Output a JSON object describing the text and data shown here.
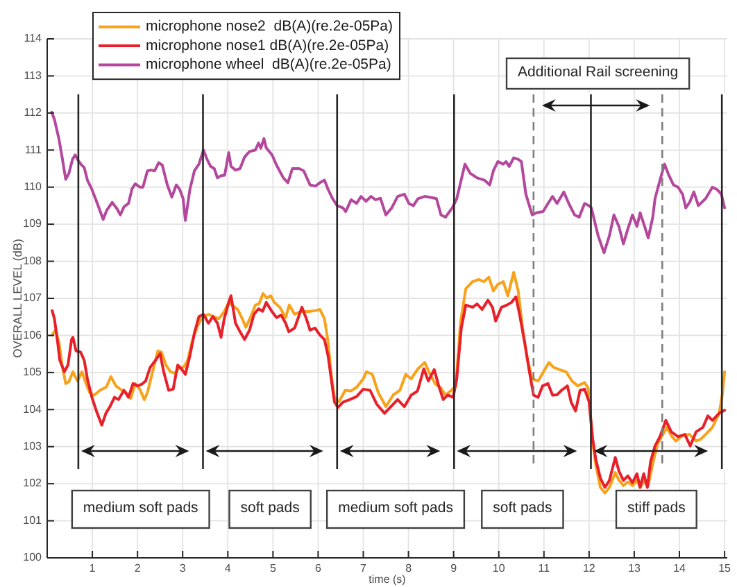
{
  "chart_data": {
    "type": "line",
    "xlabel": "time (s)",
    "ylabel": "OVERALL LEVEL (dB)",
    "xlim": [
      0,
      15.06
    ],
    "ylim": [
      100,
      114
    ],
    "xticks": [
      1,
      2,
      3,
      4,
      5,
      6,
      7,
      8,
      9,
      10,
      11,
      12,
      13,
      14,
      15
    ],
    "yticks": [
      100,
      101,
      102,
      103,
      104,
      105,
      106,
      107,
      108,
      109,
      110,
      111,
      112,
      113,
      114
    ],
    "grid": true,
    "legend": "top left",
    "series": [
      {
        "name": "microphone nose2  dB(A)(re.2e-05Pa)",
        "color": "#f7a21b",
        "x": [
          0.11,
          0.18,
          0.26,
          0.33,
          0.41,
          0.48,
          0.57,
          0.67,
          0.77,
          0.84,
          0.94,
          1.04,
          1.17,
          1.31,
          1.41,
          1.52,
          1.62,
          1.75,
          1.85,
          1.95,
          2.05,
          2.15,
          2.22,
          2.32,
          2.45,
          2.53,
          2.63,
          2.73,
          2.83,
          2.93,
          3.02,
          3.11,
          3.21,
          3.33,
          3.43,
          3.57,
          3.7,
          3.8,
          3.92,
          4.02,
          4.12,
          4.22,
          4.32,
          4.4,
          4.51,
          4.61,
          4.69,
          4.78,
          4.86,
          4.95,
          5.03,
          5.15,
          5.28,
          5.36,
          5.48,
          5.62,
          5.76,
          5.94,
          6.04,
          6.14,
          6.22,
          6.29,
          6.36,
          6.46,
          6.6,
          6.72,
          6.85,
          7.0,
          7.07,
          7.2,
          7.33,
          7.5,
          7.66,
          7.81,
          7.94,
          8.06,
          8.21,
          8.36,
          8.46,
          8.59,
          8.72,
          8.82,
          8.95,
          9.05,
          9.15,
          9.27,
          9.42,
          9.56,
          9.67,
          9.78,
          9.88,
          9.98,
          10.1,
          10.2,
          10.33,
          10.43,
          10.54,
          10.64,
          10.74,
          10.87,
          10.99,
          11.11,
          11.21,
          11.34,
          11.49,
          11.62,
          11.75,
          11.9,
          11.98,
          12.08,
          12.15,
          12.25,
          12.35,
          12.45,
          12.58,
          12.66,
          12.76,
          12.86,
          12.96,
          13.06,
          13.13,
          13.21,
          13.31,
          13.42,
          13.52,
          13.62,
          13.72,
          13.82,
          13.92,
          14.07,
          14.22,
          14.37,
          14.47,
          14.58,
          14.73,
          14.88,
          14.95,
          15.0
        ],
        "values": [
          106.01,
          106.14,
          105.83,
          105.2,
          104.7,
          104.75,
          105.02,
          104.77,
          105.02,
          104.77,
          104.46,
          104.39,
          104.52,
          104.61,
          104.89,
          104.64,
          104.55,
          104.46,
          104.3,
          104.7,
          104.55,
          104.27,
          104.46,
          104.95,
          105.58,
          105.55,
          105.2,
          105.02,
          104.98,
          105.14,
          105.14,
          105.33,
          105.83,
          106.26,
          106.48,
          106.57,
          106.5,
          106.45,
          106.64,
          106.89,
          106.8,
          106.7,
          106.45,
          106.22,
          106.51,
          106.82,
          106.85,
          107.13,
          107.01,
          107.07,
          106.89,
          106.76,
          106.48,
          106.82,
          106.57,
          106.65,
          106.64,
          106.67,
          106.7,
          106.45,
          105.83,
          104.95,
          104.33,
          104.21,
          104.52,
          104.5,
          104.6,
          104.83,
          105.02,
          104.95,
          104.46,
          104.08,
          104.39,
          104.52,
          104.95,
          104.83,
          105.1,
          105.27,
          105.0,
          104.7,
          104.58,
          104.39,
          104.52,
          104.64,
          106.33,
          107.26,
          107.45,
          107.51,
          107.45,
          107.57,
          107.2,
          107.38,
          107.45,
          107.07,
          107.7,
          107.2,
          106.07,
          105.33,
          104.83,
          104.77,
          105.02,
          105.27,
          105.14,
          105.08,
          105.02,
          104.77,
          104.64,
          104.73,
          104.58,
          103.1,
          102.5,
          101.9,
          101.75,
          101.9,
          102.3,
          102.1,
          101.95,
          102.05,
          101.95,
          102.1,
          101.9,
          102.05,
          101.96,
          102.6,
          103.08,
          103.3,
          103.52,
          103.3,
          103.15,
          103.3,
          103.33,
          103.15,
          103.2,
          103.33,
          103.52,
          103.9,
          104.4,
          105.02
        ]
      },
      {
        "name": "microphone nose1 dB(A)(re.2e-05Pa)",
        "color": "#e8202a",
        "x": [
          0.11,
          0.16,
          0.23,
          0.28,
          0.38,
          0.46,
          0.54,
          0.57,
          0.64,
          0.74,
          0.82,
          0.89,
          0.99,
          1.09,
          1.21,
          1.3,
          1.39,
          1.49,
          1.58,
          1.7,
          1.8,
          1.9,
          2.0,
          2.09,
          2.18,
          2.28,
          2.4,
          2.5,
          2.58,
          2.69,
          2.79,
          2.89,
          2.97,
          3.06,
          3.16,
          3.26,
          3.36,
          3.46,
          3.57,
          3.67,
          3.77,
          3.85,
          3.92,
          4.02,
          4.07,
          4.17,
          4.27,
          4.37,
          4.48,
          4.58,
          4.68,
          4.77,
          4.85,
          4.98,
          5.08,
          5.18,
          5.28,
          5.35,
          5.48,
          5.64,
          5.74,
          5.82,
          5.93,
          6.04,
          6.14,
          6.22,
          6.29,
          6.36,
          6.44,
          6.55,
          6.7,
          6.85,
          7.0,
          7.15,
          7.3,
          7.47,
          7.61,
          7.76,
          7.91,
          8.06,
          8.2,
          8.34,
          8.44,
          8.57,
          8.67,
          8.77,
          8.87,
          8.99,
          9.07,
          9.17,
          9.27,
          9.42,
          9.52,
          9.63,
          9.76,
          9.86,
          9.93,
          10.06,
          10.18,
          10.28,
          10.38,
          10.46,
          10.57,
          10.67,
          10.77,
          10.87,
          10.97,
          11.09,
          11.19,
          11.29,
          11.39,
          11.52,
          11.6,
          11.7,
          11.8,
          11.9,
          12.0,
          12.08,
          12.15,
          12.25,
          12.35,
          12.45,
          12.58,
          12.66,
          12.76,
          12.86,
          12.96,
          13.06,
          13.13,
          13.21,
          13.29,
          13.36,
          13.46,
          13.57,
          13.7,
          13.82,
          13.97,
          14.12,
          14.24,
          14.37,
          14.52,
          14.63,
          14.73,
          14.88,
          15.0
        ],
        "values": [
          106.67,
          106.45,
          105.83,
          105.33,
          105.02,
          105.2,
          105.89,
          105.95,
          105.58,
          105.55,
          105.33,
          104.83,
          104.33,
          103.96,
          103.58,
          103.9,
          104.08,
          104.33,
          104.27,
          104.52,
          104.33,
          104.7,
          104.64,
          104.68,
          104.77,
          105.14,
          105.33,
          105.51,
          105.02,
          104.52,
          104.55,
          105.2,
          105.1,
          104.95,
          105.45,
          106.07,
          106.51,
          106.57,
          106.33,
          106.51,
          106.33,
          105.95,
          106.45,
          106.89,
          107.07,
          106.33,
          106.1,
          105.89,
          106.14,
          106.57,
          106.72,
          106.65,
          106.89,
          106.64,
          106.48,
          106.55,
          106.33,
          106.1,
          106.2,
          106.76,
          106.45,
          106.14,
          106.2,
          106.01,
          105.89,
          105.45,
          104.83,
          104.21,
          104.06,
          104.2,
          104.27,
          104.35,
          104.55,
          104.52,
          104.14,
          103.9,
          104.08,
          104.27,
          104.08,
          104.39,
          104.5,
          105.1,
          104.77,
          105.08,
          104.64,
          104.27,
          104.39,
          104.33,
          104.83,
          106.2,
          106.82,
          106.76,
          106.85,
          106.7,
          106.95,
          106.76,
          106.39,
          106.76,
          106.82,
          106.89,
          107.04,
          106.57,
          105.83,
          105.08,
          104.39,
          104.33,
          104.64,
          104.7,
          104.39,
          104.4,
          104.52,
          104.64,
          104.21,
          103.96,
          104.52,
          104.55,
          104.21,
          103.21,
          102.65,
          102.15,
          101.9,
          102.09,
          102.71,
          102.34,
          102.09,
          102.21,
          102.03,
          102.27,
          101.9,
          102.27,
          101.9,
          102.59,
          103.02,
          103.27,
          103.71,
          103.4,
          103.27,
          103.33,
          103.02,
          103.4,
          103.52,
          103.83,
          103.71,
          103.9,
          103.98
        ]
      },
      {
        "name": "microphone wheel  dB(A)(re.2e-05Pa)",
        "color": "#b4489d",
        "x": [
          0.1,
          0.16,
          0.26,
          0.33,
          0.41,
          0.48,
          0.56,
          0.62,
          0.69,
          0.76,
          0.82,
          0.89,
          0.99,
          1.11,
          1.24,
          1.32,
          1.44,
          1.55,
          1.62,
          1.7,
          1.8,
          1.88,
          1.95,
          2.05,
          2.12,
          2.22,
          2.3,
          2.38,
          2.47,
          2.55,
          2.66,
          2.76,
          2.86,
          2.93,
          3.01,
          3.06,
          3.16,
          3.26,
          3.36,
          3.46,
          3.54,
          3.62,
          3.7,
          3.77,
          3.85,
          3.93,
          4.02,
          4.07,
          4.17,
          4.27,
          4.37,
          4.48,
          4.61,
          4.68,
          4.73,
          4.8,
          4.85,
          4.98,
          5.08,
          5.23,
          5.33,
          5.43,
          5.58,
          5.68,
          5.82,
          5.94,
          6.04,
          6.14,
          6.22,
          6.32,
          6.42,
          6.55,
          6.61,
          6.73,
          6.85,
          6.95,
          7.06,
          7.17,
          7.27,
          7.38,
          7.5,
          7.63,
          7.76,
          7.91,
          8.01,
          8.11,
          8.21,
          8.36,
          8.51,
          8.62,
          8.72,
          8.82,
          8.97,
          9.07,
          9.25,
          9.37,
          9.52,
          9.68,
          9.8,
          9.88,
          9.98,
          10.1,
          10.16,
          10.23,
          10.33,
          10.43,
          10.5,
          10.6,
          10.74,
          10.84,
          10.98,
          11.09,
          11.19,
          11.29,
          11.44,
          11.55,
          11.68,
          11.78,
          11.9,
          12.0,
          12.05,
          12.2,
          12.33,
          12.45,
          12.55,
          12.66,
          12.76,
          12.86,
          12.96,
          13.06,
          13.13,
          13.23,
          13.31,
          13.41,
          13.46,
          13.57,
          13.67,
          13.77,
          13.87,
          13.97,
          14.07,
          14.14,
          14.23,
          14.32,
          14.42,
          14.58,
          14.73,
          14.83,
          14.93,
          15.0
        ],
        "values": [
          112.02,
          111.83,
          111.3,
          110.81,
          110.21,
          110.37,
          110.75,
          110.87,
          110.71,
          110.6,
          110.53,
          110.19,
          109.94,
          109.56,
          109.13,
          109.38,
          109.59,
          109.41,
          109.25,
          109.47,
          109.56,
          109.96,
          110.09,
          110.0,
          110.0,
          110.44,
          110.46,
          110.44,
          110.66,
          110.59,
          110.06,
          109.73,
          110.06,
          109.95,
          109.69,
          109.1,
          109.94,
          110.44,
          110.62,
          111.0,
          110.75,
          110.56,
          110.5,
          110.25,
          110.31,
          110.32,
          110.93,
          110.56,
          110.46,
          110.5,
          110.81,
          110.96,
          111.0,
          111.19,
          111.05,
          111.31,
          111.06,
          110.87,
          110.59,
          110.25,
          110.12,
          110.5,
          110.5,
          110.44,
          110.06,
          110.03,
          110.12,
          110.19,
          109.94,
          109.69,
          109.5,
          109.44,
          109.34,
          109.66,
          109.56,
          109.75,
          109.62,
          109.75,
          109.66,
          109.7,
          109.25,
          109.44,
          109.75,
          109.81,
          109.56,
          109.5,
          109.69,
          109.75,
          109.72,
          109.69,
          109.25,
          109.19,
          109.44,
          109.69,
          110.62,
          110.37,
          110.25,
          110.19,
          110.06,
          110.44,
          110.69,
          110.62,
          110.69,
          110.56,
          110.79,
          110.75,
          110.69,
          109.81,
          109.25,
          109.31,
          109.34,
          109.56,
          109.75,
          109.56,
          109.87,
          109.56,
          109.25,
          109.19,
          109.56,
          109.5,
          109.44,
          108.69,
          108.23,
          108.69,
          109.25,
          108.94,
          108.47,
          108.88,
          109.25,
          108.94,
          109.31,
          108.94,
          108.63,
          109.19,
          109.69,
          110.19,
          110.62,
          110.31,
          110.06,
          110.0,
          109.81,
          109.44,
          109.6,
          109.87,
          109.5,
          109.69,
          110.0,
          109.94,
          109.81,
          109.44
        ]
      }
    ],
    "ref_lines": [
      {
        "axis": "x",
        "value": 0.69
      },
      {
        "axis": "x",
        "value": 3.45
      },
      {
        "axis": "x",
        "value": 6.42
      },
      {
        "axis": "x",
        "value": 9.01
      },
      {
        "axis": "x",
        "value": 10.77,
        "color": "#7f7f7f",
        "line_style": "dashed"
      },
      {
        "axis": "x",
        "value": 12.04
      },
      {
        "axis": "x",
        "value": 13.62,
        "color": "#7f7f7f",
        "line_style": "dashed"
      },
      {
        "axis": "x",
        "value": 14.94
      }
    ],
    "annotations": [
      "medium soft pads",
      "soft pads",
      "medium soft pads",
      "soft pads",
      "stiff pads",
      "Additional Rail screening"
    ]
  }
}
